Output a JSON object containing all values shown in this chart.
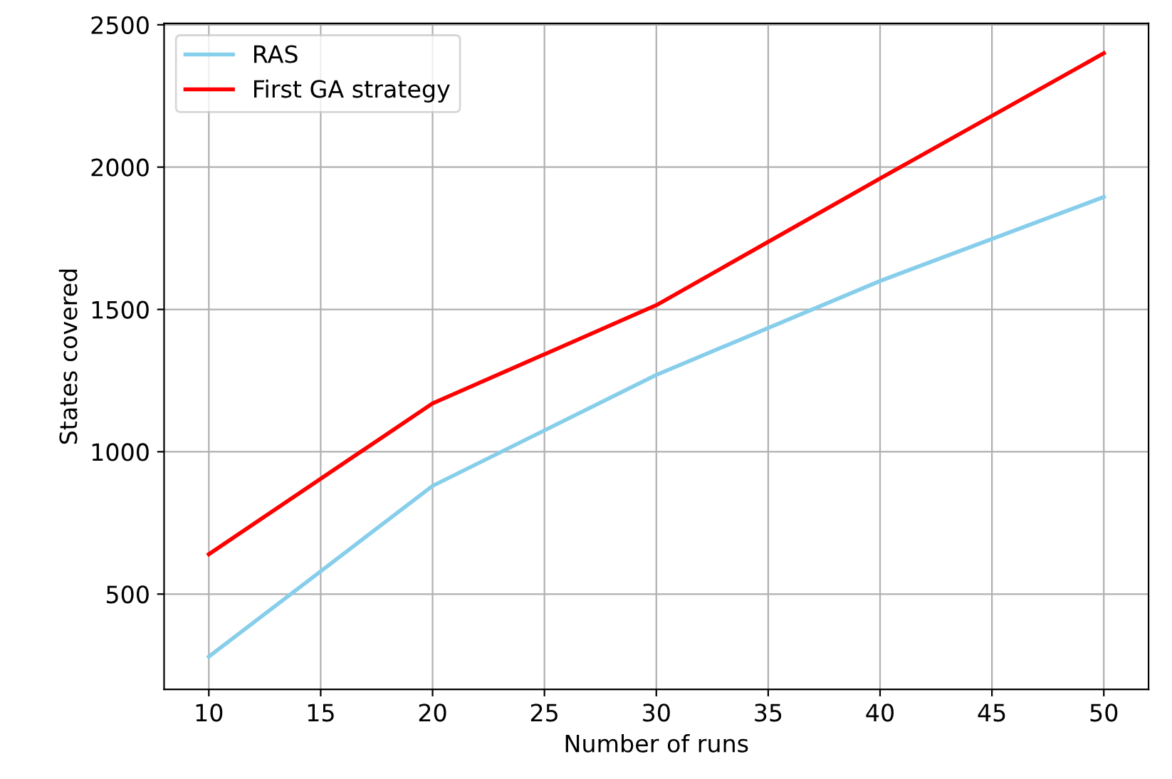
{
  "chart_data": {
    "type": "line",
    "xlabel": "Number of runs",
    "ylabel": "States covered",
    "x": [
      10,
      20,
      30,
      40,
      50
    ],
    "series": [
      {
        "name": "RAS",
        "color": "#87ceeb",
        "values": [
          280,
          880,
          1270,
          1600,
          1895
        ]
      },
      {
        "name": "First GA strategy",
        "color": "#ff0000",
        "values": [
          640,
          1170,
          1515,
          1960,
          2400
        ]
      }
    ],
    "xlim": [
      8,
      52
    ],
    "xticks": [
      10,
      15,
      20,
      25,
      30,
      35,
      40,
      45,
      50
    ],
    "ylim": [
      165,
      2505
    ],
    "yticks": [
      500,
      1000,
      1500,
      2000,
      2500
    ],
    "grid": true,
    "legend": "top left",
    "line_style": "solid",
    "marker": "none"
  }
}
